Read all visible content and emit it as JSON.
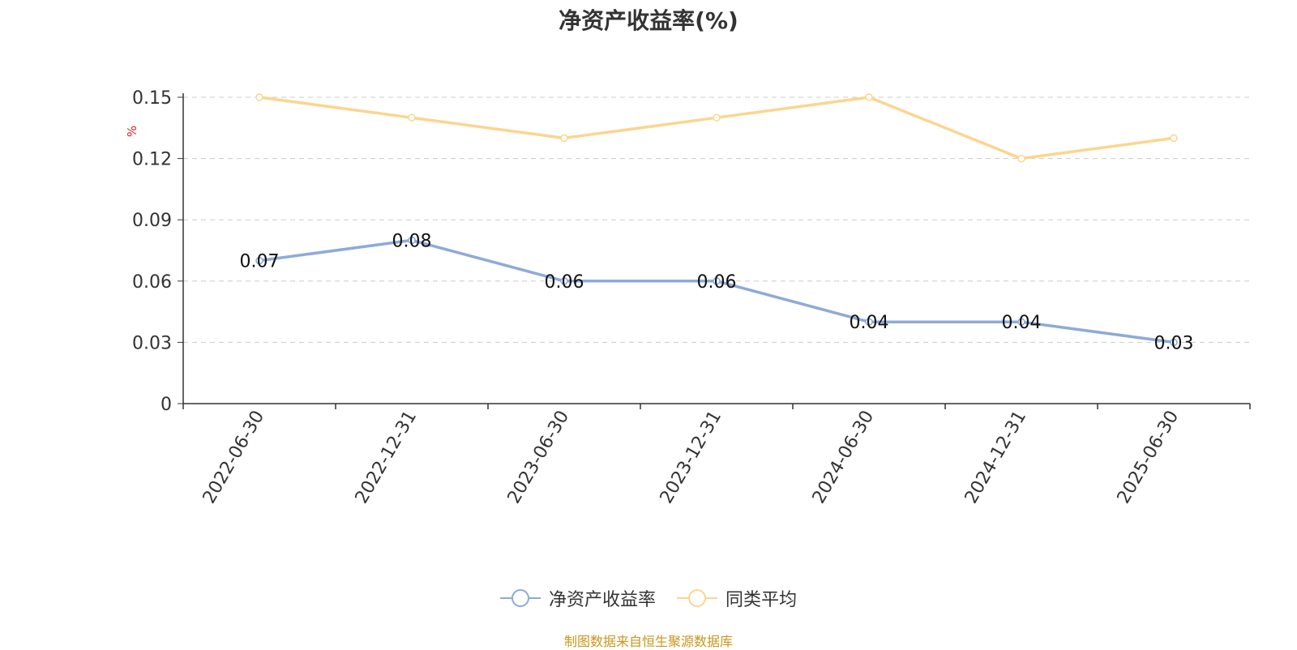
{
  "title": "净资产收益率(%)",
  "source_note": "制图数据来自恒生聚源数据库",
  "colors": {
    "series1": "#8eaad8",
    "series2": "#fcd58f",
    "axis": "#333333",
    "grid": "#cccccc",
    "unit": "#e02020"
  },
  "chart_data": {
    "type": "line",
    "title": "净资产收益率(%)",
    "ylabel": "%",
    "ylim": [
      0,
      0.15
    ],
    "yticks": [
      "0",
      "0.03",
      "0.06",
      "0.09",
      "0.12",
      "0.15"
    ],
    "ytick_values": [
      0,
      0.03,
      0.06,
      0.09,
      0.12,
      0.15
    ],
    "categories": [
      "2022-06-30",
      "2022-12-31",
      "2023-06-30",
      "2023-12-31",
      "2024-06-30",
      "2024-12-31",
      "2025-06-30"
    ],
    "grid": true,
    "legend_position": "bottom",
    "series": [
      {
        "name": "净资产收益率",
        "values": [
          0.07,
          0.08,
          0.06,
          0.06,
          0.04,
          0.04,
          0.03
        ],
        "labels": [
          "0.07",
          "0.08",
          "0.06",
          "0.06",
          "0.04",
          "0.04",
          "0.03"
        ]
      },
      {
        "name": "同类平均",
        "values": [
          0.15,
          0.14,
          0.13,
          0.14,
          0.15,
          0.12,
          0.13
        ]
      }
    ]
  }
}
